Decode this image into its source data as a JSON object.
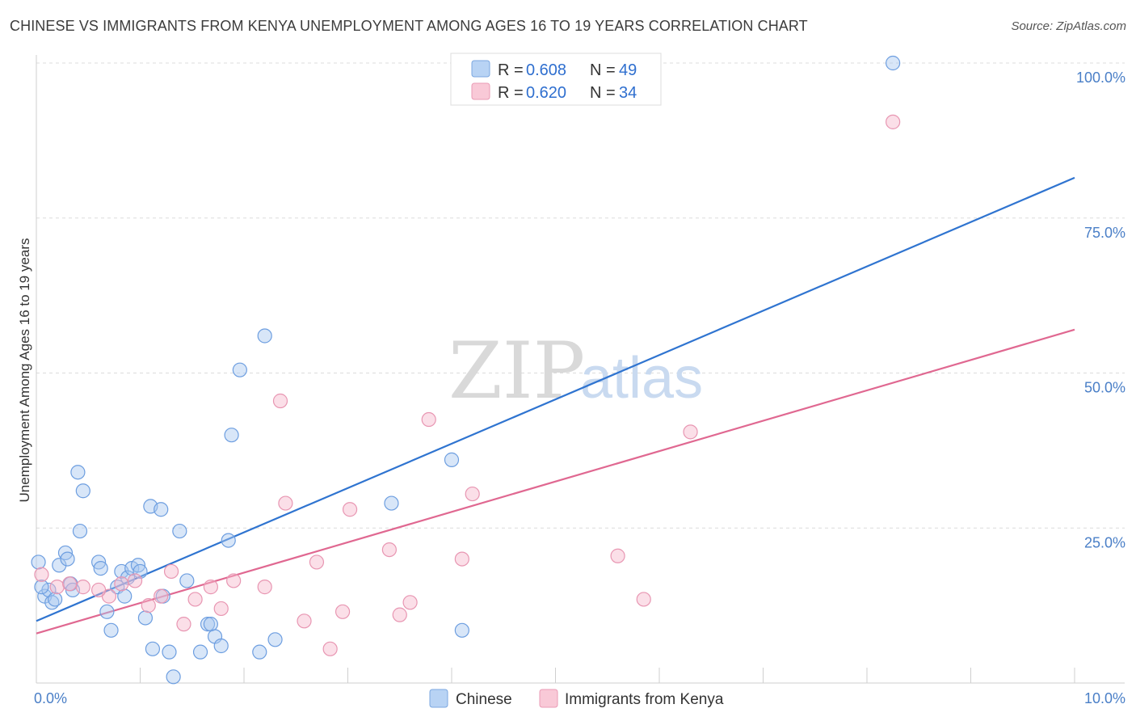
{
  "title": "CHINESE VS IMMIGRANTS FROM KENYA UNEMPLOYMENT AMONG AGES 16 TO 19 YEARS CORRELATION CHART",
  "source": "Source: ZipAtlas.com",
  "watermark": {
    "zip": "ZIP",
    "atlas": "atlas"
  },
  "colors": {
    "chinese": "#a9c8f0",
    "chinese_line": "#2f74d0",
    "kenya": "#f7b9cc",
    "kenya_line": "#e06891",
    "axis_text": "#4a7fc7"
  },
  "legend": {
    "rows": [
      {
        "r_label": "R = ",
        "r_value": "0.608",
        "n_label": "N = ",
        "n_value": "49"
      },
      {
        "r_label": "R = ",
        "r_value": "0.620",
        "n_label": "N = ",
        "n_value": "34"
      }
    ]
  },
  "bottom_legend": {
    "chinese": "Chinese",
    "kenya": "Immigrants from Kenya"
  },
  "chart_data": {
    "type": "scatter",
    "title": "CHINESE VS IMMIGRANTS FROM KENYA UNEMPLOYMENT AMONG AGES 16 TO 19 YEARS CORRELATION CHART",
    "xlabel": "",
    "ylabel": "Unemployment Among Ages 16 to 19 years",
    "xlim": [
      0,
      10
    ],
    "ylim": [
      0,
      100
    ],
    "x_tick_labels": [
      "0.0%",
      "10.0%"
    ],
    "y_ticks": [
      25,
      50,
      75,
      100
    ],
    "y_tick_labels": [
      "25.0%",
      "50.0%",
      "75.0%",
      "100.0%"
    ],
    "series": [
      {
        "name": "Chinese",
        "R": 0.608,
        "N": 49,
        "trend": {
          "x": [
            0,
            10
          ],
          "y": [
            10.0,
            81.5
          ]
        },
        "points": [
          [
            0.02,
            19.5
          ],
          [
            0.08,
            14.0
          ],
          [
            0.12,
            15.0
          ],
          [
            0.15,
            13.0
          ],
          [
            0.18,
            13.5
          ],
          [
            0.22,
            19.0
          ],
          [
            0.28,
            21.0
          ],
          [
            0.3,
            20.0
          ],
          [
            0.33,
            16.0
          ],
          [
            0.35,
            15.0
          ],
          [
            0.4,
            34.0
          ],
          [
            0.42,
            24.5
          ],
          [
            0.45,
            31.0
          ],
          [
            0.6,
            19.5
          ],
          [
            0.62,
            18.5
          ],
          [
            0.68,
            11.5
          ],
          [
            0.72,
            8.5
          ],
          [
            0.78,
            15.5
          ],
          [
            0.82,
            18.0
          ],
          [
            0.85,
            14.0
          ],
          [
            0.88,
            17.0
          ],
          [
            0.92,
            18.5
          ],
          [
            0.98,
            19.0
          ],
          [
            1.0,
            18.0
          ],
          [
            1.05,
            10.5
          ],
          [
            1.1,
            28.5
          ],
          [
            1.12,
            5.5
          ],
          [
            1.2,
            28.0
          ],
          [
            1.22,
            14.0
          ],
          [
            1.28,
            5.0
          ],
          [
            1.32,
            1.0
          ],
          [
            1.38,
            24.5
          ],
          [
            1.45,
            16.5
          ],
          [
            1.58,
            5.0
          ],
          [
            1.65,
            9.5
          ],
          [
            1.68,
            9.5
          ],
          [
            1.72,
            7.5
          ],
          [
            1.78,
            6.0
          ],
          [
            1.85,
            23.0
          ],
          [
            1.88,
            40.0
          ],
          [
            1.96,
            50.5
          ],
          [
            2.15,
            5.0
          ],
          [
            2.2,
            56.0
          ],
          [
            2.3,
            7.0
          ],
          [
            3.42,
            29.0
          ],
          [
            4.0,
            36.0
          ],
          [
            4.1,
            8.5
          ],
          [
            8.25,
            100.0
          ],
          [
            0.05,
            15.5
          ]
        ]
      },
      {
        "name": "Immigrants from Kenya",
        "R": 0.62,
        "N": 34,
        "trend": {
          "x": [
            0,
            10
          ],
          "y": [
            8.0,
            57.0
          ]
        },
        "points": [
          [
            0.05,
            17.5
          ],
          [
            0.2,
            15.5
          ],
          [
            0.32,
            16.0
          ],
          [
            0.45,
            15.5
          ],
          [
            0.7,
            14.0
          ],
          [
            0.82,
            16.0
          ],
          [
            0.95,
            16.5
          ],
          [
            1.08,
            12.5
          ],
          [
            1.2,
            14.0
          ],
          [
            1.3,
            18.0
          ],
          [
            1.42,
            9.5
          ],
          [
            1.53,
            13.5
          ],
          [
            1.68,
            15.5
          ],
          [
            1.78,
            12.0
          ],
          [
            1.9,
            16.5
          ],
          [
            2.2,
            15.5
          ],
          [
            2.35,
            45.5
          ],
          [
            2.4,
            29.0
          ],
          [
            2.58,
            10.0
          ],
          [
            2.7,
            19.5
          ],
          [
            2.83,
            5.5
          ],
          [
            2.95,
            11.5
          ],
          [
            3.02,
            28.0
          ],
          [
            3.4,
            21.5
          ],
          [
            3.5,
            11.0
          ],
          [
            3.6,
            13.0
          ],
          [
            3.78,
            42.5
          ],
          [
            4.1,
            20.0
          ],
          [
            4.2,
            30.5
          ],
          [
            5.6,
            20.5
          ],
          [
            5.85,
            13.5
          ],
          [
            6.3,
            40.5
          ],
          [
            8.25,
            90.5
          ],
          [
            0.6,
            15.0
          ]
        ]
      }
    ]
  }
}
